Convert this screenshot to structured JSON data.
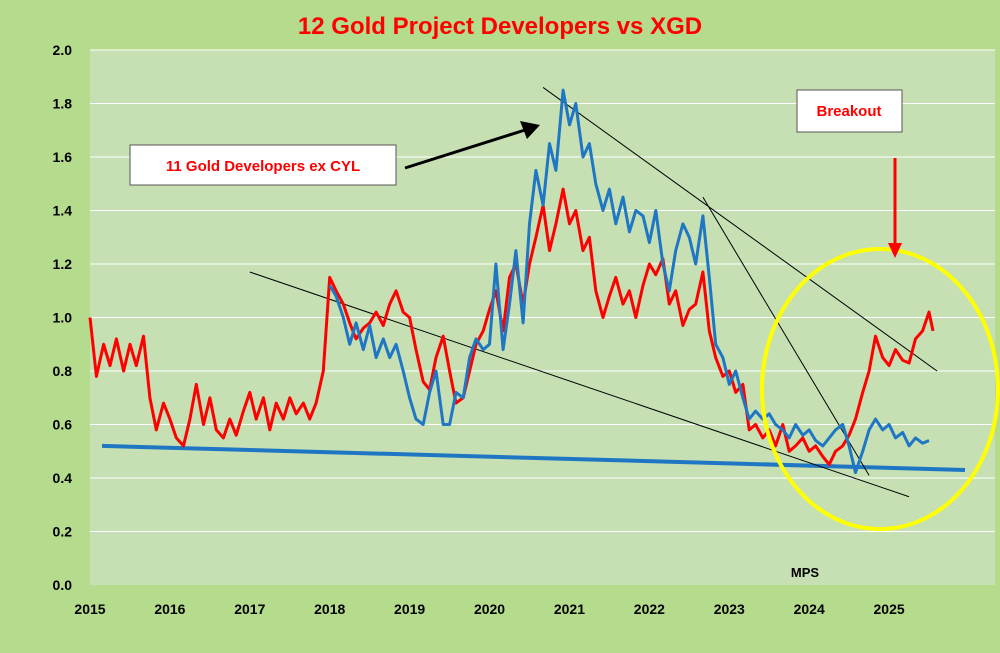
{
  "chart_data": {
    "type": "line",
    "title": "12 Gold Project Developers vs XGD",
    "xlabel": "",
    "ylabel": "",
    "xlim": [
      2015.0,
      2025.95
    ],
    "ylim": [
      0.0,
      2.0
    ],
    "x_ticks": [
      "2015",
      "2016",
      "2017",
      "2018",
      "2019",
      "2020",
      "2021",
      "2022",
      "2023",
      "2024",
      "2025"
    ],
    "y_ticks": [
      "0.0",
      "0.2",
      "0.4",
      "0.6",
      "0.8",
      "1.0",
      "1.2",
      "1.4",
      "1.6",
      "1.8",
      "2.0"
    ],
    "grid": true,
    "colors": {
      "outer_bg": "#b5dc8c",
      "plot_bg": "#c6e0b4",
      "grid": "#ffffff",
      "red_series": "#ff0000",
      "blue_series": "#1f77c4",
      "support_line": "#1f77c4",
      "trendline": "#000000",
      "circle": "#ffff00",
      "title": "#ff0000",
      "annotation_text": "#ff0000"
    },
    "series": [
      {
        "name": "",
        "color": "#ff0000",
        "points": [
          [
            2015.0,
            1.0
          ],
          [
            2015.08,
            0.78
          ],
          [
            2015.17,
            0.9
          ],
          [
            2015.25,
            0.82
          ],
          [
            2015.33,
            0.92
          ],
          [
            2015.42,
            0.8
          ],
          [
            2015.5,
            0.9
          ],
          [
            2015.58,
            0.82
          ],
          [
            2015.67,
            0.93
          ],
          [
            2015.75,
            0.7
          ],
          [
            2015.83,
            0.58
          ],
          [
            2015.92,
            0.68
          ],
          [
            2016.0,
            0.62
          ],
          [
            2016.08,
            0.55
          ],
          [
            2016.17,
            0.52
          ],
          [
            2016.25,
            0.62
          ],
          [
            2016.33,
            0.75
          ],
          [
            2016.42,
            0.6
          ],
          [
            2016.5,
            0.7
          ],
          [
            2016.58,
            0.58
          ],
          [
            2016.67,
            0.55
          ],
          [
            2016.75,
            0.62
          ],
          [
            2016.83,
            0.56
          ],
          [
            2016.92,
            0.65
          ],
          [
            2017.0,
            0.72
          ],
          [
            2017.08,
            0.62
          ],
          [
            2017.17,
            0.7
          ],
          [
            2017.25,
            0.58
          ],
          [
            2017.33,
            0.68
          ],
          [
            2017.42,
            0.62
          ],
          [
            2017.5,
            0.7
          ],
          [
            2017.58,
            0.64
          ],
          [
            2017.67,
            0.68
          ],
          [
            2017.75,
            0.62
          ],
          [
            2017.83,
            0.68
          ],
          [
            2017.92,
            0.8
          ],
          [
            2018.0,
            1.15
          ],
          [
            2018.08,
            1.1
          ],
          [
            2018.17,
            1.05
          ],
          [
            2018.25,
            0.98
          ],
          [
            2018.33,
            0.92
          ],
          [
            2018.42,
            0.96
          ],
          [
            2018.5,
            0.98
          ],
          [
            2018.58,
            1.02
          ],
          [
            2018.67,
            0.97
          ],
          [
            2018.75,
            1.05
          ],
          [
            2018.83,
            1.1
          ],
          [
            2018.92,
            1.02
          ],
          [
            2019.0,
            1.0
          ],
          [
            2019.08,
            0.88
          ],
          [
            2019.17,
            0.76
          ],
          [
            2019.25,
            0.73
          ],
          [
            2019.33,
            0.85
          ],
          [
            2019.42,
            0.93
          ],
          [
            2019.5,
            0.8
          ],
          [
            2019.58,
            0.68
          ],
          [
            2019.67,
            0.7
          ],
          [
            2019.75,
            0.8
          ],
          [
            2019.83,
            0.9
          ],
          [
            2019.92,
            0.95
          ],
          [
            2020.0,
            1.03
          ],
          [
            2020.08,
            1.1
          ],
          [
            2020.17,
            0.95
          ],
          [
            2020.25,
            1.15
          ],
          [
            2020.33,
            1.2
          ],
          [
            2020.42,
            1.05
          ],
          [
            2020.5,
            1.2
          ],
          [
            2020.58,
            1.3
          ],
          [
            2020.67,
            1.42
          ],
          [
            2020.75,
            1.25
          ],
          [
            2020.83,
            1.35
          ],
          [
            2020.92,
            1.48
          ],
          [
            2021.0,
            1.35
          ],
          [
            2021.08,
            1.4
          ],
          [
            2021.17,
            1.25
          ],
          [
            2021.25,
            1.3
          ],
          [
            2021.33,
            1.1
          ],
          [
            2021.42,
            1.0
          ],
          [
            2021.5,
            1.08
          ],
          [
            2021.58,
            1.15
          ],
          [
            2021.67,
            1.05
          ],
          [
            2021.75,
            1.1
          ],
          [
            2021.83,
            1.0
          ],
          [
            2021.92,
            1.12
          ],
          [
            2022.0,
            1.2
          ],
          [
            2022.08,
            1.16
          ],
          [
            2022.17,
            1.22
          ],
          [
            2022.25,
            1.05
          ],
          [
            2022.33,
            1.1
          ],
          [
            2022.42,
            0.97
          ],
          [
            2022.5,
            1.03
          ],
          [
            2022.58,
            1.05
          ],
          [
            2022.67,
            1.17
          ],
          [
            2022.75,
            0.95
          ],
          [
            2022.83,
            0.85
          ],
          [
            2022.92,
            0.78
          ],
          [
            2023.0,
            0.8
          ],
          [
            2023.08,
            0.72
          ],
          [
            2023.17,
            0.75
          ],
          [
            2023.25,
            0.58
          ],
          [
            2023.33,
            0.6
          ],
          [
            2023.42,
            0.55
          ],
          [
            2023.5,
            0.58
          ],
          [
            2023.58,
            0.52
          ],
          [
            2023.67,
            0.6
          ],
          [
            2023.75,
            0.5
          ],
          [
            2023.83,
            0.52
          ],
          [
            2023.92,
            0.55
          ],
          [
            2024.0,
            0.5
          ],
          [
            2024.08,
            0.52
          ],
          [
            2024.17,
            0.48
          ],
          [
            2024.25,
            0.45
          ],
          [
            2024.33,
            0.5
          ],
          [
            2024.42,
            0.52
          ],
          [
            2024.5,
            0.56
          ],
          [
            2024.58,
            0.62
          ],
          [
            2024.67,
            0.72
          ],
          [
            2024.75,
            0.8
          ],
          [
            2024.83,
            0.93
          ],
          [
            2024.92,
            0.85
          ],
          [
            2025.0,
            0.82
          ],
          [
            2025.08,
            0.88
          ],
          [
            2025.17,
            0.84
          ],
          [
            2025.25,
            0.83
          ],
          [
            2025.33,
            0.92
          ],
          [
            2025.42,
            0.95
          ],
          [
            2025.5,
            1.02
          ],
          [
            2025.55,
            0.95
          ]
        ]
      },
      {
        "name": "11 Gold Developers ex CYL",
        "color": "#1f77c4",
        "points": [
          [
            2018.0,
            1.12
          ],
          [
            2018.08,
            1.08
          ],
          [
            2018.17,
            1.0
          ],
          [
            2018.25,
            0.9
          ],
          [
            2018.33,
            0.98
          ],
          [
            2018.42,
            0.88
          ],
          [
            2018.5,
            0.97
          ],
          [
            2018.58,
            0.85
          ],
          [
            2018.67,
            0.92
          ],
          [
            2018.75,
            0.85
          ],
          [
            2018.83,
            0.9
          ],
          [
            2018.92,
            0.8
          ],
          [
            2019.0,
            0.7
          ],
          [
            2019.08,
            0.62
          ],
          [
            2019.17,
            0.6
          ],
          [
            2019.25,
            0.72
          ],
          [
            2019.33,
            0.8
          ],
          [
            2019.42,
            0.6
          ],
          [
            2019.5,
            0.6
          ],
          [
            2019.58,
            0.72
          ],
          [
            2019.67,
            0.7
          ],
          [
            2019.75,
            0.85
          ],
          [
            2019.83,
            0.92
          ],
          [
            2019.92,
            0.88
          ],
          [
            2020.0,
            0.9
          ],
          [
            2020.08,
            1.2
          ],
          [
            2020.17,
            0.88
          ],
          [
            2020.25,
            1.05
          ],
          [
            2020.33,
            1.25
          ],
          [
            2020.42,
            0.98
          ],
          [
            2020.5,
            1.35
          ],
          [
            2020.58,
            1.55
          ],
          [
            2020.67,
            1.42
          ],
          [
            2020.75,
            1.65
          ],
          [
            2020.83,
            1.55
          ],
          [
            2020.92,
            1.85
          ],
          [
            2021.0,
            1.72
          ],
          [
            2021.08,
            1.8
          ],
          [
            2021.17,
            1.6
          ],
          [
            2021.25,
            1.65
          ],
          [
            2021.33,
            1.5
          ],
          [
            2021.42,
            1.4
          ],
          [
            2021.5,
            1.48
          ],
          [
            2021.58,
            1.35
          ],
          [
            2021.67,
            1.45
          ],
          [
            2021.75,
            1.32
          ],
          [
            2021.83,
            1.4
          ],
          [
            2021.92,
            1.38
          ],
          [
            2022.0,
            1.28
          ],
          [
            2022.08,
            1.4
          ],
          [
            2022.17,
            1.2
          ],
          [
            2022.25,
            1.1
          ],
          [
            2022.33,
            1.25
          ],
          [
            2022.42,
            1.35
          ],
          [
            2022.5,
            1.3
          ],
          [
            2022.58,
            1.2
          ],
          [
            2022.67,
            1.38
          ],
          [
            2022.75,
            1.15
          ],
          [
            2022.83,
            0.9
          ],
          [
            2022.92,
            0.85
          ],
          [
            2023.0,
            0.75
          ],
          [
            2023.08,
            0.8
          ],
          [
            2023.17,
            0.7
          ],
          [
            2023.25,
            0.62
          ],
          [
            2023.33,
            0.65
          ],
          [
            2023.42,
            0.62
          ],
          [
            2023.5,
            0.64
          ],
          [
            2023.58,
            0.6
          ],
          [
            2023.67,
            0.58
          ],
          [
            2023.75,
            0.55
          ],
          [
            2023.83,
            0.6
          ],
          [
            2023.92,
            0.56
          ],
          [
            2024.0,
            0.58
          ],
          [
            2024.08,
            0.54
          ],
          [
            2024.17,
            0.52
          ],
          [
            2024.25,
            0.55
          ],
          [
            2024.33,
            0.58
          ],
          [
            2024.42,
            0.6
          ],
          [
            2024.5,
            0.52
          ],
          [
            2024.58,
            0.42
          ],
          [
            2024.67,
            0.5
          ],
          [
            2024.75,
            0.58
          ],
          [
            2024.83,
            0.62
          ],
          [
            2024.92,
            0.58
          ],
          [
            2025.0,
            0.6
          ],
          [
            2025.08,
            0.55
          ],
          [
            2025.17,
            0.57
          ],
          [
            2025.25,
            0.52
          ],
          [
            2025.33,
            0.55
          ],
          [
            2025.42,
            0.53
          ],
          [
            2025.5,
            0.54
          ]
        ]
      }
    ],
    "lines": [
      {
        "from": [
          2015.15,
          0.52
        ],
        "to": [
          2025.95,
          0.43
        ],
        "color": "#1f77c4"
      },
      {
        "from": [
          2017.0,
          1.17
        ],
        "to": [
          2025.25,
          0.33
        ],
        "color": "#000000"
      },
      {
        "from": [
          2020.67,
          1.86
        ],
        "to": [
          2025.6,
          0.8
        ],
        "color": "#000000"
      },
      {
        "from": [
          2022.67,
          1.45
        ],
        "to": [
          2024.75,
          0.41
        ],
        "color": "#000000"
      }
    ],
    "annotations": [
      {
        "text": "11 Gold Developers ex CYL",
        "boxed": true
      },
      {
        "text": "Breakout",
        "boxed": true
      },
      {
        "text": "MPS",
        "boxed": false
      }
    ]
  }
}
